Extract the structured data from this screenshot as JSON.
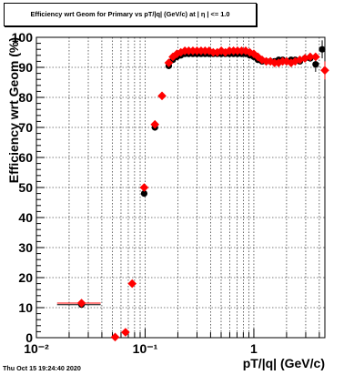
{
  "chart_data": {
    "type": "scatter",
    "title": "Efficiency wrt Geom for Primary vs pT/|q| (GeV/c) at | η | <= 1.0",
    "xlabel": "pT/|q| (GeV/c)",
    "ylabel": "Efficiency wrt Geom (%)",
    "xscale": "log",
    "xlim": [
      0.01,
      4.5
    ],
    "ylim": [
      0,
      100
    ],
    "grid": true,
    "y_ticks": [
      0,
      10,
      20,
      30,
      40,
      50,
      60,
      70,
      80,
      90,
      100
    ],
    "y_tick_labels": [
      "0",
      "10",
      "20",
      "30",
      "40",
      "50",
      "60",
      "70",
      "80",
      "90",
      "100"
    ],
    "x_ticks": [
      0.01,
      0.1,
      1
    ],
    "x_tick_labels": [
      "10⁻²",
      "10⁻¹",
      "1"
    ],
    "series": [
      {
        "color": "#000000",
        "marker": "circle",
        "points": [
          {
            "x": 0.026,
            "y": 11.0,
            "xerr": [
              0.0105,
              0.013
            ]
          },
          {
            "x": 0.098,
            "y": 48.0,
            "xerr": [
              0.006,
              0.006
            ]
          },
          {
            "x": 0.123,
            "y": 70.0,
            "xerr": [
              0.006,
              0.006
            ]
          },
          {
            "x": 0.165,
            "y": 90.5
          },
          {
            "x": 0.18,
            "y": 92.5
          },
          {
            "x": 0.196,
            "y": 93.5
          },
          {
            "x": 0.213,
            "y": 94.0
          },
          {
            "x": 0.232,
            "y": 94.5
          },
          {
            "x": 0.252,
            "y": 94.5
          },
          {
            "x": 0.275,
            "y": 94.5
          },
          {
            "x": 0.3,
            "y": 94.5
          },
          {
            "x": 0.327,
            "y": 94.5
          },
          {
            "x": 0.356,
            "y": 94.5
          },
          {
            "x": 0.388,
            "y": 94.5
          },
          {
            "x": 0.423,
            "y": 94.5
          },
          {
            "x": 0.461,
            "y": 94.5
          },
          {
            "x": 0.502,
            "y": 94.5
          },
          {
            "x": 0.547,
            "y": 94.5
          },
          {
            "x": 0.596,
            "y": 94.5
          },
          {
            "x": 0.65,
            "y": 94.5
          },
          {
            "x": 0.708,
            "y": 94.5
          },
          {
            "x": 0.772,
            "y": 94.5
          },
          {
            "x": 0.841,
            "y": 94.5
          },
          {
            "x": 0.917,
            "y": 94.0
          },
          {
            "x": 1.0,
            "y": 93.5
          },
          {
            "x": 1.09,
            "y": 92.5
          },
          {
            "x": 1.19,
            "y": 92.0
          },
          {
            "x": 1.3,
            "y": 92.0
          },
          {
            "x": 1.42,
            "y": 92.0
          },
          {
            "x": 1.55,
            "y": 92.0
          },
          {
            "x": 1.69,
            "y": 92.5
          },
          {
            "x": 1.84,
            "y": 92.5
          },
          {
            "x": 2.0,
            "y": 92.0
          },
          {
            "x": 2.2,
            "y": 92.5
          },
          {
            "x": 2.4,
            "y": 92.5
          },
          {
            "x": 2.65,
            "y": 92.0
          },
          {
            "x": 2.95,
            "y": 93.0
          },
          {
            "x": 3.3,
            "y": 93.0
          },
          {
            "x": 3.7,
            "y": 91.0,
            "yerr": 2.5
          },
          {
            "x": 4.25,
            "y": 96.0,
            "yerr": 3.0
          }
        ]
      },
      {
        "color": "#ff0000",
        "marker": "diamond",
        "points": [
          {
            "x": 0.026,
            "y": 11.5,
            "xerr": [
              0.0105,
              0.013
            ]
          },
          {
            "x": 0.053,
            "y": 0.2
          },
          {
            "x": 0.066,
            "y": 1.8
          },
          {
            "x": 0.076,
            "y": 18.0
          },
          {
            "x": 0.098,
            "y": 50.0
          },
          {
            "x": 0.123,
            "y": 71.0
          },
          {
            "x": 0.143,
            "y": 80.5
          },
          {
            "x": 0.165,
            "y": 91.5
          },
          {
            "x": 0.18,
            "y": 93.5
          },
          {
            "x": 0.196,
            "y": 94.5
          },
          {
            "x": 0.213,
            "y": 95.0
          },
          {
            "x": 0.232,
            "y": 95.5
          },
          {
            "x": 0.252,
            "y": 95.5
          },
          {
            "x": 0.275,
            "y": 95.5
          },
          {
            "x": 0.3,
            "y": 95.5
          },
          {
            "x": 0.327,
            "y": 95.5
          },
          {
            "x": 0.356,
            "y": 95.5
          },
          {
            "x": 0.388,
            "y": 95.5
          },
          {
            "x": 0.423,
            "y": 95.0
          },
          {
            "x": 0.461,
            "y": 95.0
          },
          {
            "x": 0.502,
            "y": 95.5
          },
          {
            "x": 0.547,
            "y": 95.0
          },
          {
            "x": 0.596,
            "y": 95.5
          },
          {
            "x": 0.65,
            "y": 95.5
          },
          {
            "x": 0.708,
            "y": 95.5
          },
          {
            "x": 0.772,
            "y": 95.5
          },
          {
            "x": 0.841,
            "y": 95.5
          },
          {
            "x": 0.917,
            "y": 95.0
          },
          {
            "x": 1.0,
            "y": 94.5
          },
          {
            "x": 1.09,
            "y": 93.5
          },
          {
            "x": 1.19,
            "y": 92.5
          },
          {
            "x": 1.3,
            "y": 92.0
          },
          {
            "x": 1.42,
            "y": 92.0
          },
          {
            "x": 1.55,
            "y": 91.5
          },
          {
            "x": 1.69,
            "y": 91.5
          },
          {
            "x": 1.84,
            "y": 92.0
          },
          {
            "x": 2.0,
            "y": 92.0
          },
          {
            "x": 2.2,
            "y": 91.5
          },
          {
            "x": 2.4,
            "y": 92.0
          },
          {
            "x": 2.65,
            "y": 92.5
          },
          {
            "x": 2.95,
            "y": 93.0
          },
          {
            "x": 3.3,
            "y": 93.5
          },
          {
            "x": 3.7,
            "y": 93.5
          },
          {
            "x": 4.5,
            "y": 89.0,
            "yerr": 3.0
          }
        ]
      }
    ]
  },
  "footer": {
    "timestamp": "Thu Oct 15 19:24:40 2020"
  }
}
